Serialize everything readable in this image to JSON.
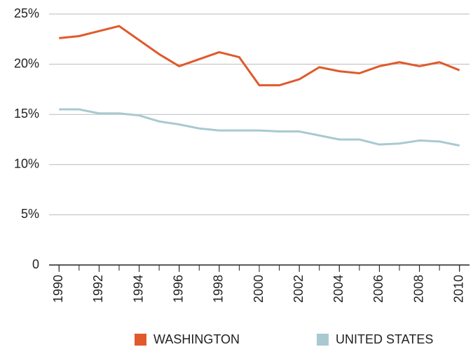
{
  "chart_data": {
    "type": "line",
    "x": [
      1990,
      1991,
      1992,
      1993,
      1994,
      1995,
      1996,
      1997,
      1998,
      1999,
      2000,
      2001,
      2002,
      2003,
      2004,
      2005,
      2006,
      2007,
      2008,
      2009,
      2010
    ],
    "series": [
      {
        "name": "WASHINGTON",
        "color": "#e05a2b",
        "values": [
          22.6,
          22.8,
          23.3,
          23.8,
          22.4,
          21.0,
          19.8,
          20.5,
          21.2,
          20.7,
          17.9,
          17.9,
          18.5,
          19.7,
          19.3,
          19.1,
          19.8,
          20.2,
          19.8,
          20.2,
          19.4
        ]
      },
      {
        "name": "UNITED STATES",
        "color": "#a9c9d1",
        "values": [
          15.5,
          15.5,
          15.1,
          15.1,
          14.9,
          14.3,
          14.0,
          13.6,
          13.4,
          13.4,
          13.4,
          13.3,
          13.3,
          12.9,
          12.5,
          12.5,
          12.0,
          12.1,
          12.4,
          12.3,
          11.9
        ]
      }
    ],
    "xlim": [
      1989.5,
      2010.5
    ],
    "xticks": [
      1990,
      1992,
      1994,
      1996,
      1998,
      2000,
      2002,
      2004,
      2006,
      2008,
      2010
    ],
    "ylim": [
      0,
      25
    ],
    "yticks": [
      0,
      {
        "value": 5,
        "label": "5%"
      },
      {
        "value": 10,
        "label": "10%"
      },
      {
        "value": 15,
        "label": "15%"
      },
      {
        "value": 20,
        "label": "20%"
      },
      {
        "value": 25,
        "label": "25%"
      }
    ],
    "grid": true,
    "legend": "bottom"
  }
}
